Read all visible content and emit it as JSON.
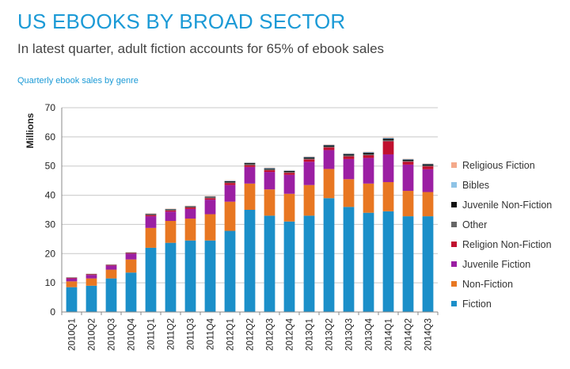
{
  "header": {
    "title": "US EBOOKS BY BROAD SECTOR",
    "subtitle": "In latest quarter, adult fiction accounts for 65% of ebook sales",
    "caption": "Quarterly ebook sales by genre"
  },
  "chart_data": {
    "type": "bar",
    "stacked": true,
    "ylabel": "Millions",
    "ylim": [
      0,
      70
    ],
    "yticks": [
      0,
      10,
      20,
      30,
      40,
      50,
      60,
      70
    ],
    "grid": true,
    "legend_position": "right",
    "categories": [
      "2010Q1",
      "2010Q2",
      "2010Q3",
      "2010Q4",
      "2011Q1",
      "2011Q2",
      "2011Q3",
      "2011Q4",
      "2012Q1",
      "2012Q2",
      "2012Q3",
      "2012Q4",
      "2013Q1",
      "2013Q2",
      "2013Q3",
      "2013Q4",
      "2014Q1",
      "2014Q2",
      "2014Q3"
    ],
    "series": [
      {
        "name": "Fiction",
        "color": "#1b8fc9",
        "values": [
          8.5,
          9.0,
          11.5,
          13.5,
          22.0,
          23.7,
          24.5,
          24.5,
          27.8,
          35.0,
          33.0,
          31.0,
          33.0,
          39.0,
          36.0,
          34.0,
          34.5,
          32.8,
          32.8
        ]
      },
      {
        "name": "Non-Fiction",
        "color": "#e87722",
        "values": [
          2.0,
          2.5,
          3.0,
          4.5,
          6.8,
          7.5,
          7.5,
          9.0,
          10.0,
          9.0,
          9.0,
          9.5,
          10.5,
          10.0,
          9.5,
          10.0,
          10.0,
          8.7,
          8.3
        ]
      },
      {
        "name": "Juvenile Fiction",
        "color": "#9b1fa3",
        "values": [
          1.0,
          1.2,
          1.4,
          2.0,
          4.0,
          3.2,
          3.3,
          5.0,
          5.7,
          5.7,
          6.0,
          6.5,
          8.0,
          6.5,
          6.9,
          8.8,
          9.5,
          9.0,
          7.8
        ]
      },
      {
        "name": "Religion Non-Fiction",
        "color": "#c0102e",
        "values": [
          0.2,
          0.2,
          0.2,
          0.2,
          0.4,
          0.4,
          0.5,
          0.5,
          0.7,
          0.6,
          0.6,
          0.7,
          0.8,
          0.9,
          0.9,
          0.9,
          4.5,
          1.0,
          1.0
        ]
      },
      {
        "name": "Other",
        "color": "#666666",
        "values": [
          0.1,
          0.1,
          0.1,
          0.1,
          0.2,
          0.2,
          0.2,
          0.3,
          0.3,
          0.4,
          0.3,
          0.3,
          0.3,
          0.3,
          0.4,
          0.4,
          0.4,
          0.3,
          0.3
        ]
      },
      {
        "name": "Juvenile Non-Fiction",
        "color": "#111111",
        "values": [
          0.05,
          0.05,
          0.05,
          0.1,
          0.2,
          0.2,
          0.2,
          0.2,
          0.3,
          0.3,
          0.3,
          0.3,
          0.4,
          0.4,
          0.4,
          0.5,
          0.5,
          0.4,
          0.4
        ]
      },
      {
        "name": "Bibles",
        "color": "#8ec3e6",
        "values": [
          0.05,
          0.05,
          0.05,
          0.05,
          0.1,
          0.1,
          0.1,
          0.1,
          0.2,
          0.2,
          0.2,
          0.2,
          0.2,
          0.2,
          0.2,
          0.2,
          0.3,
          0.2,
          0.2
        ]
      },
      {
        "name": "Religious Fiction",
        "color": "#f4a98a",
        "values": [
          0.05,
          0.05,
          0.05,
          0.05,
          0.1,
          0.1,
          0.1,
          0.1,
          0.1,
          0.1,
          0.1,
          0.1,
          0.1,
          0.1,
          0.1,
          0.1,
          0.2,
          0.1,
          0.1
        ]
      }
    ],
    "legend_order": [
      "Religious Fiction",
      "Bibles",
      "Juvenile Non-Fiction",
      "Other",
      "Religion Non-Fiction",
      "Juvenile Fiction",
      "Non-Fiction",
      "Fiction"
    ]
  }
}
